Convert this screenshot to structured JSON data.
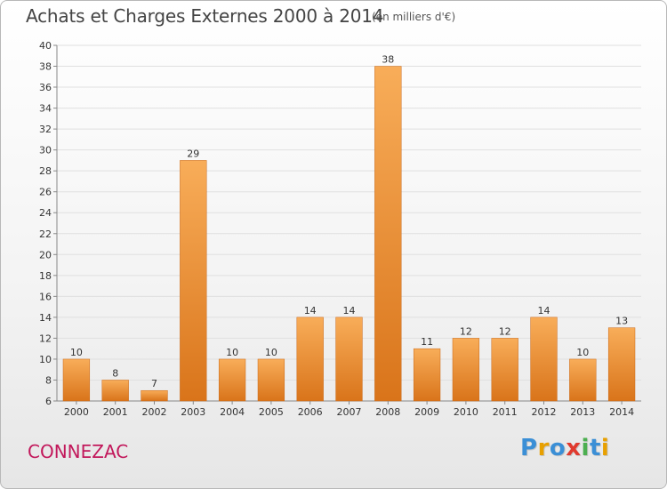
{
  "header": {
    "title": "Achats et Charges Externes 2000 à 2014",
    "unit": "(en milliers d'€)"
  },
  "footer": {
    "commune": "CONNEZAC",
    "logo_text": "Proxiti",
    "logo_colors": [
      "#3b8fd6",
      "#e8a000",
      "#3b8fd6",
      "#e03a2e",
      "#4caf50",
      "#3b8fd6",
      "#e8a000"
    ]
  },
  "colors": {
    "bar_light": "#f8ad59",
    "bar_dark": "#d9741a",
    "grid": "#e0e0e0",
    "axis": "#888888",
    "commune": "#c2185b"
  },
  "chart_data": {
    "type": "bar",
    "title": "Achats et Charges Externes 2000 à 2014",
    "subtitle": "(en milliers d'€)",
    "xlabel": "",
    "ylabel": "",
    "categories": [
      "2000",
      "2001",
      "2002",
      "2003",
      "2004",
      "2005",
      "2006",
      "2007",
      "2008",
      "2009",
      "2010",
      "2011",
      "2012",
      "2013",
      "2014"
    ],
    "values": [
      10,
      8,
      7,
      29,
      10,
      10,
      14,
      14,
      38,
      11,
      12,
      12,
      14,
      10,
      13
    ],
    "ylim": [
      6,
      40
    ],
    "yticks": [
      6,
      8,
      10,
      12,
      14,
      16,
      18,
      20,
      22,
      24,
      26,
      28,
      30,
      32,
      34,
      36,
      38,
      40
    ],
    "grid": true,
    "legend": "none",
    "data_labels": true
  }
}
